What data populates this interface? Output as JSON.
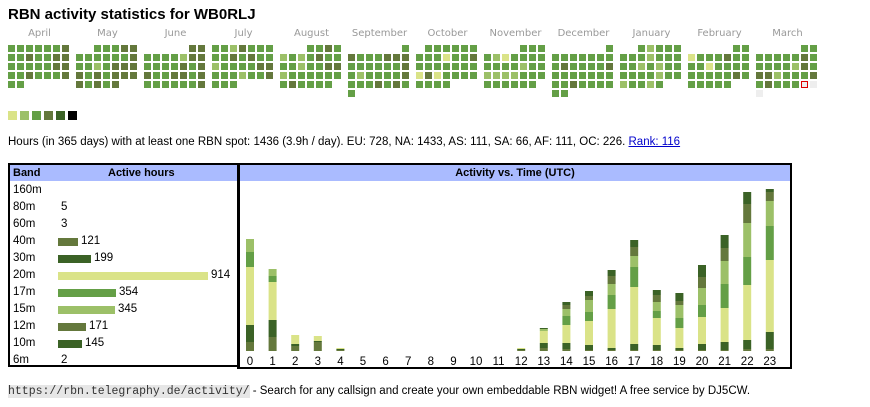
{
  "title": "RBN activity statistics for WB0RLJ",
  "colors": {
    "level1": "#dae388",
    "level2": "#9cc068",
    "level3": "#649f46",
    "level4": "#64783c",
    "level5": "#3b6226",
    "level6": "#000000",
    "empty": "#eeeeee",
    "header_bg": "#aabbff",
    "link": "#0000cc"
  },
  "calendar": {
    "months": [
      {
        "label": "April",
        "start_col": 0,
        "days": [
          3,
          3,
          3,
          3,
          3,
          3,
          4,
          3,
          3,
          4,
          3,
          3,
          4,
          4,
          3,
          3,
          3,
          3,
          3,
          4,
          4,
          3,
          3,
          4,
          3,
          3,
          3,
          4,
          3,
          3
        ]
      },
      {
        "label": "May",
        "start_col": 2,
        "days": [
          3,
          3,
          3,
          4,
          4,
          3,
          3,
          3,
          3,
          3,
          3,
          4,
          3,
          3,
          2,
          3,
          4,
          4,
          4,
          4,
          3,
          4,
          3,
          4,
          4,
          4,
          4,
          3,
          4,
          3,
          4
        ]
      },
      {
        "label": "June",
        "start_col": 5,
        "days": [
          4,
          4,
          3,
          3,
          3,
          3,
          2,
          4,
          4,
          3,
          3,
          3,
          3,
          4,
          3,
          4,
          4,
          3,
          3,
          4,
          4,
          3,
          4,
          3,
          3,
          3,
          3,
          3,
          3,
          4
        ]
      },
      {
        "label": "July",
        "start_col": 0,
        "days": [
          3,
          3,
          2,
          4,
          3,
          3,
          3,
          3,
          3,
          4,
          3,
          4,
          3,
          3,
          2,
          3,
          3,
          3,
          3,
          4,
          4,
          3,
          3,
          3,
          2,
          3,
          3,
          4,
          3,
          3,
          3
        ]
      },
      {
        "label": "August",
        "start_col": 3,
        "days": [
          3,
          3,
          4,
          3,
          2,
          3,
          2,
          3,
          4,
          3,
          3,
          3,
          3,
          2,
          3,
          3,
          4,
          4,
          2,
          3,
          3,
          3,
          3,
          3,
          3,
          3,
          4,
          3,
          3,
          3,
          3
        ]
      },
      {
        "label": "September",
        "start_col": 6,
        "days": [
          3,
          4,
          3,
          3,
          3,
          4,
          4,
          4,
          3,
          3,
          3,
          3,
          3,
          3,
          4,
          3,
          2,
          3,
          3,
          3,
          3,
          4,
          3,
          3,
          3,
          4,
          3,
          4,
          3,
          3
        ]
      },
      {
        "label": "October",
        "start_col": 1,
        "days": [
          3,
          3,
          3,
          3,
          3,
          3,
          3,
          3,
          3,
          1,
          3,
          3,
          4,
          3,
          3,
          3,
          3,
          3,
          3,
          3,
          1,
          4,
          1,
          3,
          3,
          3,
          3,
          3,
          3,
          3,
          3
        ]
      },
      {
        "label": "November",
        "start_col": 4,
        "days": [
          3,
          3,
          3,
          3,
          2,
          1,
          3,
          3,
          3,
          3,
          3,
          3,
          3,
          3,
          2,
          3,
          3,
          2,
          2,
          2,
          2,
          3,
          3,
          3,
          3,
          3,
          3,
          3,
          3,
          3
        ]
      },
      {
        "label": "December",
        "start_col": 6,
        "days": [
          3,
          3,
          3,
          3,
          3,
          3,
          3,
          3,
          3,
          4,
          3,
          3,
          3,
          3,
          4,
          3,
          3,
          3,
          3,
          3,
          3,
          3,
          3,
          3,
          4,
          3,
          3,
          3,
          3,
          3,
          3
        ]
      },
      {
        "label": "January",
        "start_col": 2,
        "days": [
          3,
          2,
          3,
          3,
          3,
          3,
          3,
          3,
          2,
          3,
          3,
          3,
          3,
          3,
          2,
          3,
          2,
          3,
          3,
          3,
          3,
          3,
          3,
          2,
          3,
          3,
          2,
          3,
          3,
          2,
          3
        ]
      },
      {
        "label": "February",
        "start_col": 5,
        "days": [
          3,
          3,
          1,
          3,
          3,
          3,
          4,
          3,
          3,
          3,
          3,
          1,
          3,
          3,
          3,
          3,
          3,
          3,
          3,
          3,
          3,
          4,
          3,
          3,
          3,
          3,
          3,
          3
        ]
      },
      {
        "label": "March",
        "start_col": 5,
        "days": [
          3,
          3,
          3,
          3,
          3,
          3,
          3,
          4,
          3,
          3,
          3,
          3,
          3,
          2,
          4,
          3,
          4,
          4,
          2,
          3,
          3,
          3,
          4,
          3,
          4,
          3,
          3,
          3,
          "today",
          0,
          0
        ]
      }
    ]
  },
  "summary": {
    "text": "Hours (in 365 days) with at least one RBN spot: 1436 (3.9h / day). EU: 728, NA: 1433, AS: 111, SA: 66, AF: 111, OC: 226.",
    "rank_link": "Rank: 116"
  },
  "bands_table": {
    "header_band": "Band",
    "header_active": "Active hours",
    "max": 914,
    "rows": [
      {
        "band": "160m",
        "hours": "",
        "value": 0,
        "level": "level1"
      },
      {
        "band": "80m",
        "hours": "5",
        "value": 5,
        "level": "level4"
      },
      {
        "band": "60m",
        "hours": "3",
        "value": 3,
        "level": "level4"
      },
      {
        "band": "40m",
        "hours": "121",
        "value": 121,
        "level": "level4"
      },
      {
        "band": "30m",
        "hours": "199",
        "value": 199,
        "level": "level5"
      },
      {
        "band": "20m",
        "hours": "914",
        "value": 914,
        "level": "level1"
      },
      {
        "band": "17m",
        "hours": "354",
        "value": 354,
        "level": "level3"
      },
      {
        "band": "15m",
        "hours": "345",
        "value": 345,
        "level": "level2"
      },
      {
        "band": "12m",
        "hours": "171",
        "value": 171,
        "level": "level4"
      },
      {
        "band": "10m",
        "hours": "145",
        "value": 145,
        "level": "level5"
      },
      {
        "band": "6m",
        "hours": "2",
        "value": 2,
        "level": "level4"
      }
    ]
  },
  "chart_data": {
    "type": "bar",
    "stacked": true,
    "title": "Activity vs. Time (UTC)",
    "xlabel": "",
    "ylabel": "",
    "categories": [
      "0",
      "1",
      "2",
      "3",
      "4",
      "5",
      "6",
      "7",
      "8",
      "9",
      "10",
      "11",
      "12",
      "13",
      "14",
      "15",
      "16",
      "17",
      "18",
      "19",
      "20",
      "21",
      "22",
      "23"
    ],
    "series": [
      {
        "name": "40m",
        "color_key": "level4",
        "values": [
          9,
          14,
          5,
          9,
          1,
          0,
          0,
          0,
          0,
          0,
          0,
          0,
          1,
          3,
          2,
          1,
          1,
          1,
          1,
          1,
          1,
          1,
          2,
          2
        ]
      },
      {
        "name": "30m",
        "color_key": "level5",
        "values": [
          17,
          17,
          2,
          1,
          1,
          0,
          0,
          0,
          0,
          0,
          0,
          0,
          1,
          5,
          6,
          5,
          2,
          6,
          5,
          2,
          6,
          8,
          9,
          17
        ]
      },
      {
        "name": "20m",
        "color_key": "level1",
        "values": [
          58,
          38,
          9,
          5,
          1,
          0,
          0,
          0,
          0,
          0,
          0,
          0,
          1,
          12,
          18,
          24,
          39,
          57,
          27,
          20,
          27,
          34,
          55,
          72
        ]
      },
      {
        "name": "17m",
        "color_key": "level3",
        "values": [
          15,
          6,
          0,
          0,
          0,
          0,
          0,
          0,
          0,
          0,
          0,
          0,
          0,
          0,
          9,
          9,
          14,
          20,
          7,
          10,
          12,
          24,
          28,
          34
        ]
      },
      {
        "name": "15m",
        "color_key": "level2",
        "values": [
          13,
          7,
          0,
          0,
          0,
          0,
          0,
          0,
          0,
          0,
          0,
          0,
          0,
          2,
          7,
          12,
          11,
          11,
          9,
          13,
          17,
          23,
          34,
          25
        ]
      },
      {
        "name": "12m",
        "color_key": "level4",
        "values": [
          0,
          0,
          0,
          0,
          0,
          0,
          0,
          0,
          0,
          0,
          0,
          0,
          0,
          0,
          4,
          4,
          8,
          9,
          7,
          4,
          11,
          13,
          19,
          9
        ]
      },
      {
        "name": "10m",
        "color_key": "level5",
        "values": [
          0,
          0,
          0,
          0,
          0,
          0,
          0,
          0,
          0,
          0,
          0,
          0,
          0,
          1,
          3,
          5,
          6,
          7,
          5,
          8,
          12,
          13,
          12,
          3
        ]
      }
    ],
    "ylim": [
      0,
      160
    ]
  },
  "footer": {
    "url": "https://rbn.telegraphy.de/activity/",
    "text": " - Search for any callsign and create your own embeddable RBN widget! A free service by DJ5CW."
  }
}
